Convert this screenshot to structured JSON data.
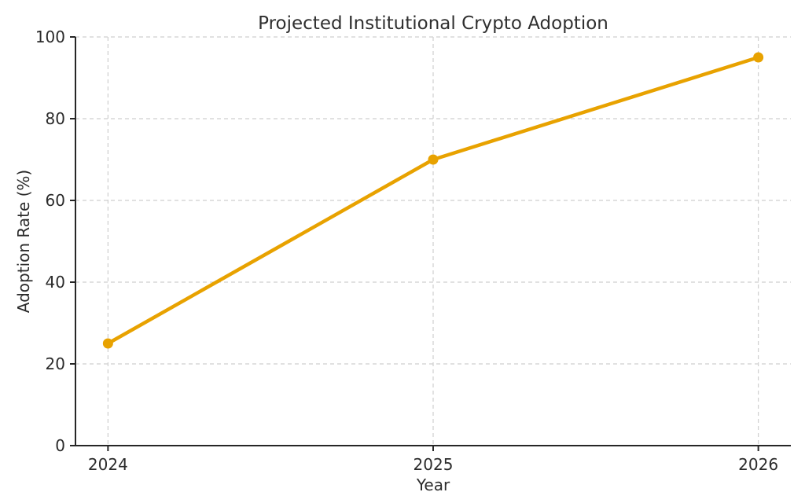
{
  "chart_data": {
    "type": "line",
    "title": "Projected Institutional Crypto Adoption",
    "xlabel": "Year",
    "ylabel": "Adoption Rate (%)",
    "x": [
      2024,
      2025,
      2026
    ],
    "values": [
      25,
      70,
      95
    ],
    "series_name": "Adoption Rate (%)",
    "xticks": [
      2024,
      2025,
      2026
    ],
    "yticks": [
      0,
      20,
      40,
      60,
      80,
      100
    ],
    "xlim": [
      2023.9,
      2026.1
    ],
    "ylim": [
      0,
      100
    ],
    "grid": "dashed, both axes",
    "legend": "none",
    "line_color": "#E8A200",
    "marker": "circle",
    "grid_color": "#cfcfcf",
    "axis_color": "#262626",
    "text_color": "#2b2b2b",
    "background_color": "#ffffff"
  }
}
